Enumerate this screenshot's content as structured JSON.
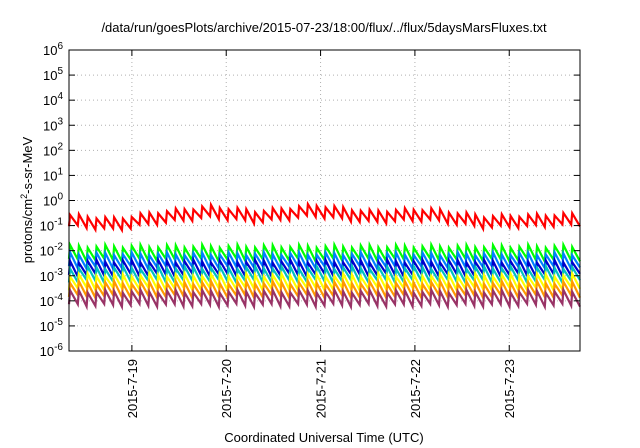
{
  "chart_data": {
    "type": "line",
    "title": "/data/run/goesPlots/archive/2015-07-23/18:00/flux/../flux/5daysMarsFluxes.txt",
    "xlabel": "Coordinated Universal Time (UTC)",
    "ylabel_base": "protons/cm",
    "ylabel_sup": "2",
    "ylabel_rest": "-s-sr-MeV",
    "y_scale": "log",
    "ylim_exp": [
      -6,
      6
    ],
    "y_ticks": [
      {
        "base": "10",
        "exp": "-6"
      },
      {
        "base": "10",
        "exp": "-5"
      },
      {
        "base": "10",
        "exp": "-4"
      },
      {
        "base": "10",
        "exp": "-3"
      },
      {
        "base": "10",
        "exp": "-2"
      },
      {
        "base": "10",
        "exp": "-1"
      },
      {
        "base": "10",
        "exp": "0"
      },
      {
        "base": "10",
        "exp": "1"
      },
      {
        "base": "10",
        "exp": "2"
      },
      {
        "base": "10",
        "exp": "3"
      },
      {
        "base": "10",
        "exp": "4"
      },
      {
        "base": "10",
        "exp": "5"
      },
      {
        "base": "10",
        "exp": "6"
      }
    ],
    "x_range_days": [
      "2015-07-18 08:00",
      "2015-07-23 18:00"
    ],
    "x_ticks": [
      "2015-7-19",
      "2015-7-20",
      "2015-7-21",
      "2015-7-22",
      "2015-7-23"
    ],
    "grid": true,
    "legend": "none",
    "series": [
      {
        "color": "#ff0000",
        "log_base": -0.8,
        "amp": 0.45,
        "swell": [
          [
            0,
            0
          ],
          [
            0.5,
            -0.15
          ],
          [
            0.9,
            0.1
          ],
          [
            1.5,
            0.35
          ],
          [
            2.0,
            0.15
          ],
          [
            2.6,
            0.4
          ],
          [
            3.2,
            0.15
          ],
          [
            3.8,
            0.25
          ],
          [
            4.4,
            -0.05
          ],
          [
            5.0,
            0
          ],
          [
            5.4,
            0.05
          ]
        ]
      },
      {
        "color": "#00ff00",
        "log_base": -2.1,
        "amp": 0.55
      },
      {
        "color": "#0080ff",
        "log_base": -2.4,
        "amp": 0.55
      },
      {
        "color": "#0000cc",
        "log_base": -2.7,
        "amp": 0.55
      },
      {
        "color": "#00c0c0",
        "log_base": -2.95,
        "amp": 0.55
      },
      {
        "color": "#ffff00",
        "log_base": -3.25,
        "amp": 0.55
      },
      {
        "color": "#ff9900",
        "log_base": -3.55,
        "amp": 0.55
      },
      {
        "color": "#993366",
        "log_base": -3.9,
        "amp": 0.55
      }
    ]
  }
}
